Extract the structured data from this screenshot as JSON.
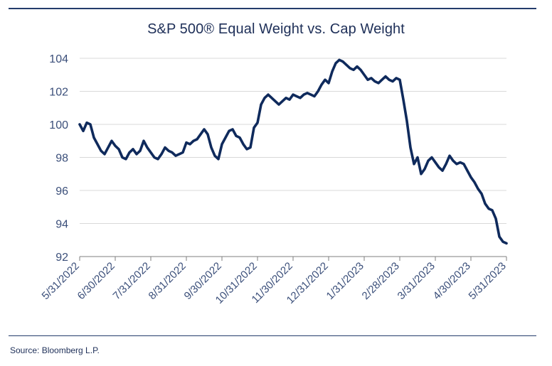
{
  "chart_data": {
    "type": "line",
    "title": "S&P 500® Equal Weight vs. Cap Weight",
    "xlabel": "",
    "ylabel": "",
    "x_ticks": [
      "5/31/2022",
      "6/30/2022",
      "7/31/2022",
      "8/31/2022",
      "9/30/2022",
      "10/31/2022",
      "11/30/2022",
      "12/31/2022",
      "1/31/2023",
      "2/28/2023",
      "3/31/2023",
      "4/30/2023",
      "5/31/2023"
    ],
    "y_ticks": [
      92,
      94,
      96,
      98,
      100,
      102,
      104
    ],
    "ylim": [
      92,
      104
    ],
    "grid": "horizontal",
    "line_color": "#0f2a5c",
    "series": [
      {
        "name": "",
        "x": [
          0,
          0.1,
          0.2,
          0.3,
          0.4,
          0.5,
          0.6,
          0.7,
          0.8,
          0.9,
          1.0,
          1.1,
          1.2,
          1.3,
          1.4,
          1.5,
          1.6,
          1.7,
          1.8,
          1.9,
          2.0,
          2.1,
          2.2,
          2.3,
          2.4,
          2.5,
          2.6,
          2.7,
          2.8,
          2.9,
          3.0,
          3.1,
          3.2,
          3.3,
          3.4,
          3.5,
          3.6,
          3.7,
          3.8,
          3.9,
          4.0,
          4.1,
          4.2,
          4.3,
          4.4,
          4.5,
          4.6,
          4.7,
          4.8,
          4.9,
          5.0,
          5.1,
          5.2,
          5.3,
          5.4,
          5.5,
          5.6,
          5.7,
          5.8,
          5.9,
          6.0,
          6.1,
          6.2,
          6.3,
          6.4,
          6.5,
          6.6,
          6.7,
          6.8,
          6.9,
          7.0,
          7.1,
          7.2,
          7.3,
          7.4,
          7.5,
          7.6,
          7.7,
          7.8,
          7.9,
          8.0,
          8.1,
          8.2,
          8.3,
          8.4,
          8.5,
          8.6,
          8.7,
          8.8,
          8.9,
          9.0,
          9.1,
          9.2,
          9.3,
          9.4,
          9.5,
          9.6,
          9.7,
          9.8,
          9.9,
          10.0,
          10.1,
          10.2,
          10.3,
          10.4,
          10.5,
          10.6,
          10.7,
          10.8,
          10.9,
          11.0,
          11.1,
          11.2,
          11.3,
          11.4,
          11.5,
          11.6,
          11.7,
          11.8,
          11.9,
          12.0
        ],
        "values": [
          100.0,
          99.6,
          100.1,
          100.0,
          99.2,
          98.8,
          98.4,
          98.2,
          98.6,
          99.0,
          98.7,
          98.5,
          98.0,
          97.9,
          98.3,
          98.5,
          98.2,
          98.4,
          99.0,
          98.6,
          98.3,
          98.0,
          97.9,
          98.2,
          98.6,
          98.4,
          98.3,
          98.1,
          98.2,
          98.3,
          98.9,
          98.8,
          99.0,
          99.1,
          99.4,
          99.7,
          99.4,
          98.6,
          98.1,
          97.9,
          98.8,
          99.2,
          99.6,
          99.7,
          99.3,
          99.2,
          98.8,
          98.5,
          98.6,
          99.8,
          100.1,
          101.2,
          101.6,
          101.8,
          101.6,
          101.4,
          101.2,
          101.4,
          101.6,
          101.5,
          101.8,
          101.7,
          101.6,
          101.8,
          101.9,
          101.8,
          101.7,
          102.0,
          102.4,
          102.7,
          102.5,
          103.2,
          103.7,
          103.9,
          103.8,
          103.6,
          103.4,
          103.3,
          103.5,
          103.3,
          103.0,
          102.7,
          102.8,
          102.6,
          102.5,
          102.7,
          102.9,
          102.7,
          102.6,
          102.8,
          102.7,
          101.5,
          100.2,
          98.6,
          97.6,
          98.0,
          97.0,
          97.3,
          97.8,
          98.0,
          97.7,
          97.4,
          97.2,
          97.6,
          98.1,
          97.8,
          97.6,
          97.7,
          97.6,
          97.2,
          96.8,
          96.5,
          96.1,
          95.8,
          95.2,
          94.9,
          94.8,
          94.3,
          93.2,
          92.9,
          92.8
        ]
      }
    ]
  },
  "footer": {
    "source": "Source: Bloomberg L.P."
  }
}
